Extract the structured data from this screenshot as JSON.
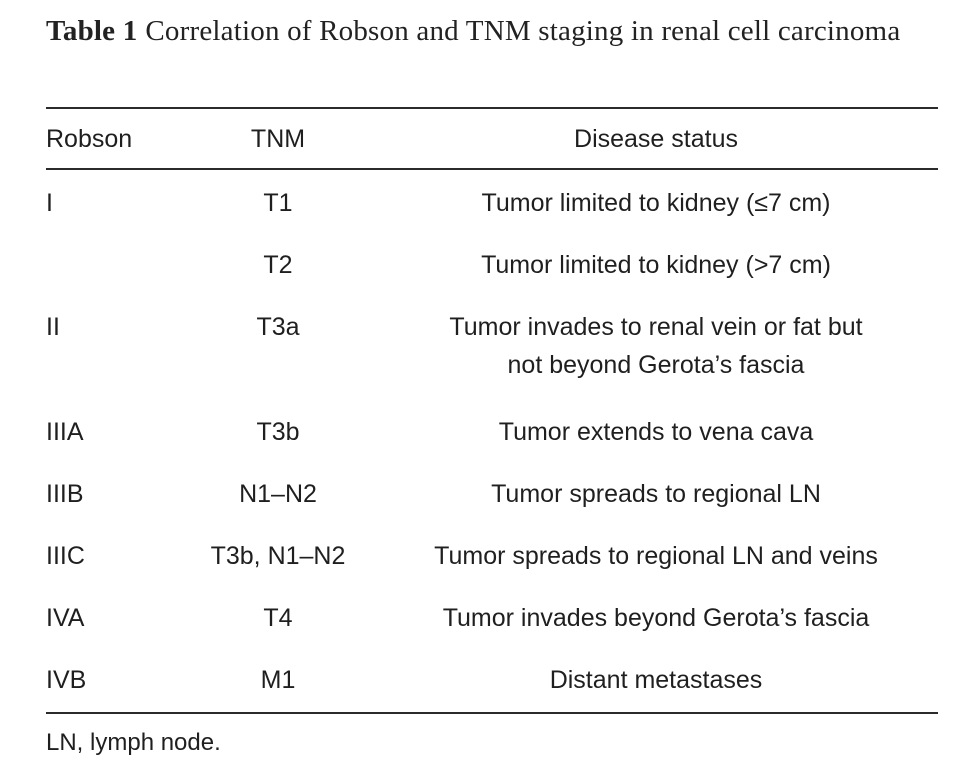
{
  "caption": {
    "label": "Table 1",
    "text": "Correlation of Robson and TNM staging in renal cell carcinoma"
  },
  "table": {
    "headers": [
      "Robson",
      "TNM",
      "Disease status"
    ],
    "rows": [
      {
        "robson": "I",
        "tnm": "T1",
        "status": "Tumor limited to kidney (≤7 cm)"
      },
      {
        "robson": "",
        "tnm": "T2",
        "status": "Tumor limited to kidney (>7 cm)"
      },
      {
        "robson": "II",
        "tnm": "T3a",
        "status_line1": "Tumor invades to renal vein or fat but",
        "status_line2": "not beyond Gerota’s fascia"
      },
      {
        "robson": "IIIA",
        "tnm": "T3b",
        "status": "Tumor extends to vena cava"
      },
      {
        "robson": "IIIB",
        "tnm": "N1–N2",
        "status": "Tumor spreads to regional LN"
      },
      {
        "robson": "IIIC",
        "tnm": "T3b, N1–N2",
        "status": "Tumor spreads to regional LN and veins"
      },
      {
        "robson": "IVA",
        "tnm": "T4",
        "status": "Tumor invades beyond Gerota’s fascia"
      },
      {
        "robson": "IVB",
        "tnm": "M1",
        "status": "Distant metastases"
      }
    ]
  },
  "footnote": "LN, lymph node."
}
